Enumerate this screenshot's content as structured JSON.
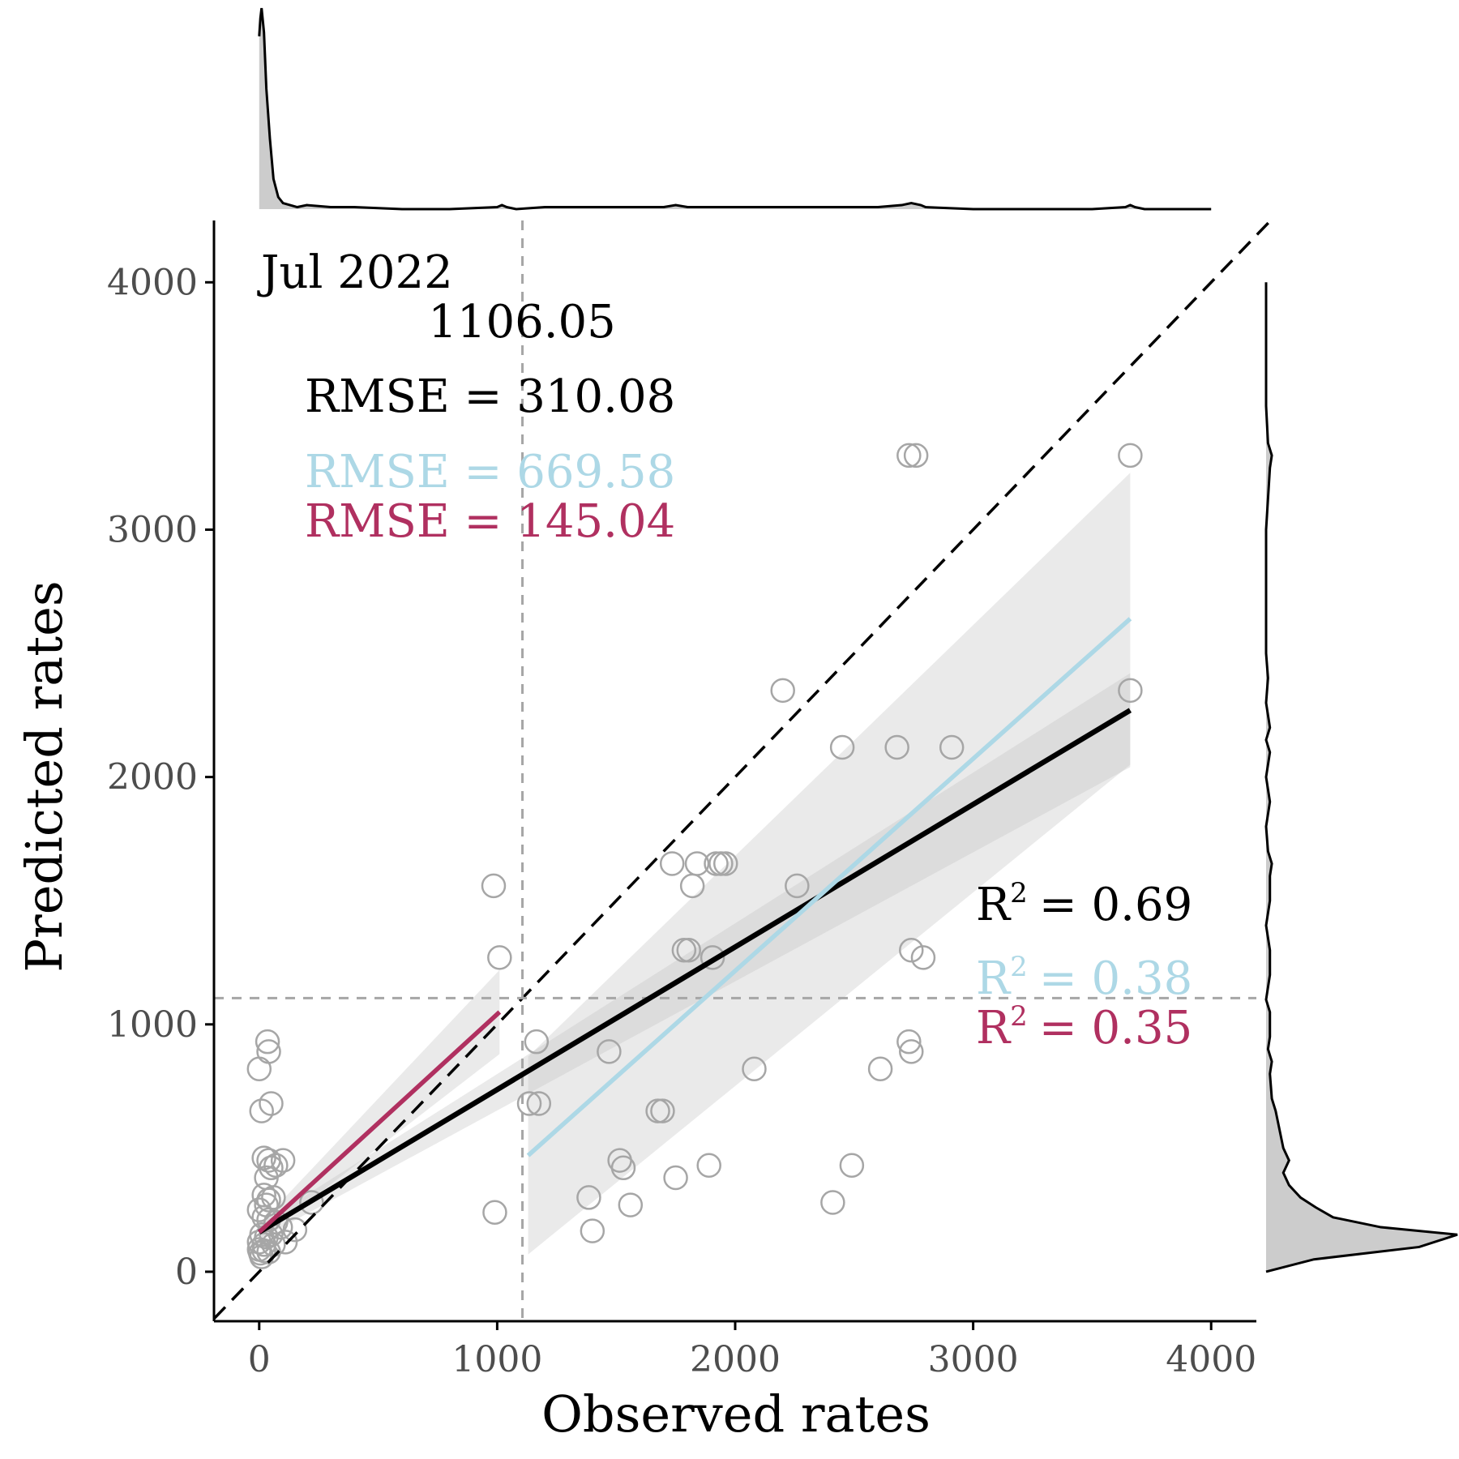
{
  "chart_data": {
    "type": "scatter",
    "xlabel": "Observed rates",
    "ylabel": "Predicted rates",
    "xlim": [
      -190,
      4190
    ],
    "ylim": [
      -200,
      4250
    ],
    "xticks": [
      0,
      1000,
      2000,
      3000,
      4000
    ],
    "yticks": [
      0,
      1000,
      2000,
      3000,
      4000
    ],
    "grid": false,
    "annotations": {
      "period": "Jul 2022",
      "threshold": "1106.05",
      "rmse_all": "RMSE = 310.08",
      "rmse_high": "RMSE = 669.58",
      "rmse_low": "RMSE = 145.04",
      "r2_all": "= 0.69",
      "r2_high": "= 0.38",
      "r2_low": "= 0.35",
      "r2_symbol": "R",
      "r2_exponent": "2"
    },
    "threshold": 1106.05,
    "identity_line": {
      "slope": 1,
      "intercept": 0
    },
    "points": [
      [
        985,
        1560
      ],
      [
        1010,
        1270
      ],
      [
        1735,
        1650
      ],
      [
        1840,
        1650
      ],
      [
        1920,
        1650
      ],
      [
        1940,
        1650
      ],
      [
        1960,
        1650
      ],
      [
        1820,
        1560
      ],
      [
        2260,
        1560
      ],
      [
        1785,
        1300
      ],
      [
        1805,
        1300
      ],
      [
        1905,
        1270
      ],
      [
        2740,
        1300
      ],
      [
        2790,
        1270
      ],
      [
        2200,
        2350
      ],
      [
        3660,
        2350
      ],
      [
        2450,
        2120
      ],
      [
        2680,
        2120
      ],
      [
        2910,
        2120
      ],
      [
        2730,
        3300
      ],
      [
        2760,
        3300
      ],
      [
        3660,
        3300
      ],
      [
        1165,
        930
      ],
      [
        2730,
        930
      ],
      [
        2740,
        890
      ],
      [
        1470,
        890
      ],
      [
        2080,
        820
      ],
      [
        2610,
        820
      ],
      [
        1135,
        680
      ],
      [
        1175,
        680
      ],
      [
        1675,
        650
      ],
      [
        1695,
        650
      ],
      [
        1515,
        450
      ],
      [
        1530,
        420
      ],
      [
        1890,
        430
      ],
      [
        2490,
        430
      ],
      [
        1750,
        380
      ],
      [
        1385,
        300
      ],
      [
        1400,
        165
      ],
      [
        1560,
        270
      ],
      [
        2410,
        280
      ],
      [
        990,
        240
      ],
      [
        35,
        930
      ],
      [
        40,
        890
      ],
      [
        0,
        820
      ],
      [
        50,
        680
      ],
      [
        10,
        650
      ],
      [
        20,
        460
      ],
      [
        40,
        450
      ],
      [
        100,
        450
      ],
      [
        50,
        420
      ],
      [
        70,
        430
      ],
      [
        30,
        380
      ],
      [
        20,
        310
      ],
      [
        30,
        270
      ],
      [
        40,
        290
      ],
      [
        60,
        300
      ],
      [
        0,
        250
      ],
      [
        20,
        220
      ],
      [
        40,
        210
      ],
      [
        70,
        200
      ],
      [
        90,
        180
      ],
      [
        10,
        150
      ],
      [
        30,
        140
      ],
      [
        50,
        150
      ],
      [
        0,
        120
      ],
      [
        20,
        110
      ],
      [
        60,
        110
      ],
      [
        110,
        120
      ],
      [
        150,
        170
      ],
      [
        0,
        90
      ],
      [
        20,
        85
      ],
      [
        40,
        80
      ],
      [
        10,
        60
      ],
      [
        220,
        280
      ],
      [
        5,
        75
      ]
    ],
    "series": [
      {
        "range": [
          0,
          4190
        ],
        "x": [
          0,
          3660
        ],
        "y": [
          160,
          2270
        ],
        "ci_low": [
          130,
          2040
        ],
        "ci_high": [
          190,
          2420
        ],
        "color": "#000000"
      },
      {
        "range": [
          1106.05,
          4190
        ],
        "x": [
          1130,
          3660
        ],
        "y": [
          470,
          2640
        ],
        "ci_low": [
          70,
          2050
        ],
        "ci_high": [
          870,
          3230
        ],
        "color": "#add8e6"
      },
      {
        "range": [
          0,
          1106.05
        ],
        "x": [
          0,
          1010
        ],
        "y": [
          160,
          1050
        ],
        "ci_low": [
          130,
          880
        ],
        "ci_high": [
          190,
          1220
        ],
        "color": "#b03060"
      }
    ],
    "density_x": {
      "x": [
        0,
        5,
        10,
        20,
        30,
        45,
        60,
        80,
        100,
        130,
        160,
        200,
        300,
        400,
        600,
        800,
        1000,
        1020,
        1040,
        1080,
        1200,
        1400,
        1600,
        1700,
        1750,
        1800,
        1900,
        2000,
        2200,
        2400,
        2600,
        2700,
        2740,
        2780,
        2800,
        3000,
        3200,
        3500,
        3640,
        3660,
        3680,
        3720,
        4000
      ],
      "y": [
        0.86,
        0.95,
        1.0,
        0.88,
        0.6,
        0.35,
        0.15,
        0.06,
        0.03,
        0.02,
        0.01,
        0.02,
        0.01,
        0.01,
        0.0,
        0.0,
        0.01,
        0.02,
        0.01,
        0.0,
        0.01,
        0.01,
        0.01,
        0.01,
        0.02,
        0.01,
        0.01,
        0.01,
        0.01,
        0.01,
        0.01,
        0.02,
        0.03,
        0.02,
        0.01,
        0.0,
        0.0,
        0.0,
        0.01,
        0.02,
        0.01,
        0.0,
        0.0
      ]
    },
    "density_y": {
      "y": [
        0,
        50,
        100,
        150,
        180,
        220,
        260,
        300,
        350,
        400,
        450,
        500,
        650,
        700,
        800,
        850,
        900,
        950,
        1050,
        1100,
        1200,
        1300,
        1400,
        1500,
        1600,
        1650,
        1700,
        1800,
        1900,
        2000,
        2100,
        2150,
        2200,
        2300,
        2400,
        2500,
        3000,
        3250,
        3300,
        3350,
        3500,
        4000
      ],
      "x": [
        0.0,
        0.25,
        0.8,
        1.0,
        0.6,
        0.35,
        0.26,
        0.18,
        0.12,
        0.09,
        0.12,
        0.09,
        0.05,
        0.03,
        0.02,
        0.03,
        0.01,
        0.02,
        0.02,
        0.0,
        0.02,
        0.02,
        0.0,
        0.02,
        0.02,
        0.03,
        0.01,
        0.0,
        0.02,
        0.0,
        0.02,
        0.0,
        0.02,
        0.0,
        0.01,
        0.0,
        0.0,
        0.02,
        0.03,
        0.01,
        0.0,
        0.0
      ]
    },
    "colors": {
      "points": "#a6a6a6",
      "ci_band": "#bfbfbf",
      "threshold_line": "#a6a6a6",
      "axis": "#000000",
      "density_fill": "#cccccc"
    }
  }
}
